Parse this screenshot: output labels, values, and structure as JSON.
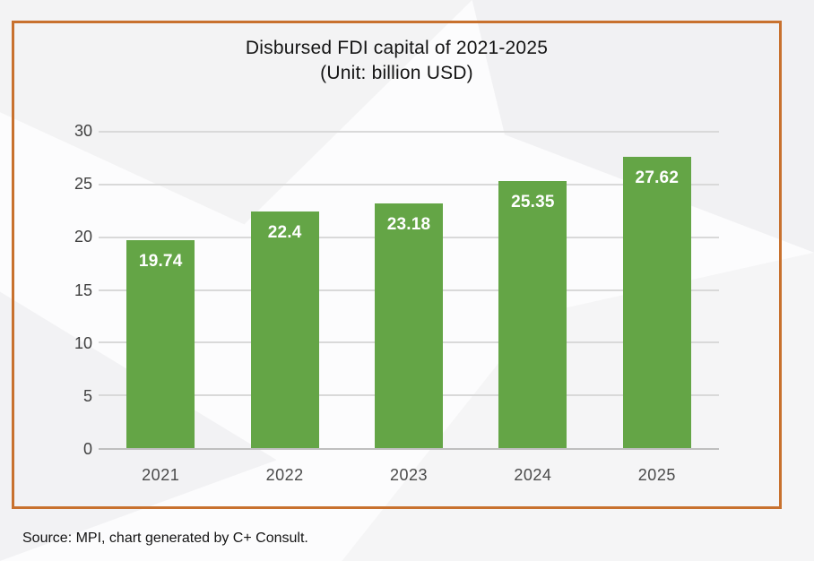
{
  "title": "Disbursed FDI capital of 2021-2025",
  "subtitle": "(Unit: billion USD)",
  "source_note": "Source: MPI, chart generated by C+ Consult.",
  "colors": {
    "bar": "#64A546",
    "frame_border": "#C8712E",
    "gridline": "#D9D9D9",
    "axis_line": "#BFBFBF",
    "bar_label": "#FFFFFF",
    "tick_label": "#3F3F3F"
  },
  "chart_data": {
    "type": "bar",
    "categories": [
      "2021",
      "2022",
      "2023",
      "2024",
      "2025"
    ],
    "values": [
      19.74,
      22.4,
      23.18,
      25.35,
      27.62
    ],
    "data_labels": [
      "19.74",
      "22.4",
      "23.18",
      "25.35",
      "27.62"
    ],
    "title": "Disbursed FDI capital of 2021-2025",
    "subtitle": "(Unit: billion USD)",
    "xlabel": "",
    "ylabel": "",
    "ylim": [
      0,
      30
    ],
    "yticks": [
      0,
      5,
      10,
      15,
      20,
      25,
      30
    ],
    "grid": true,
    "legend": false,
    "bar_label_position": "inside-top",
    "annotation": "Source: MPI, chart generated by C+ Consult."
  }
}
